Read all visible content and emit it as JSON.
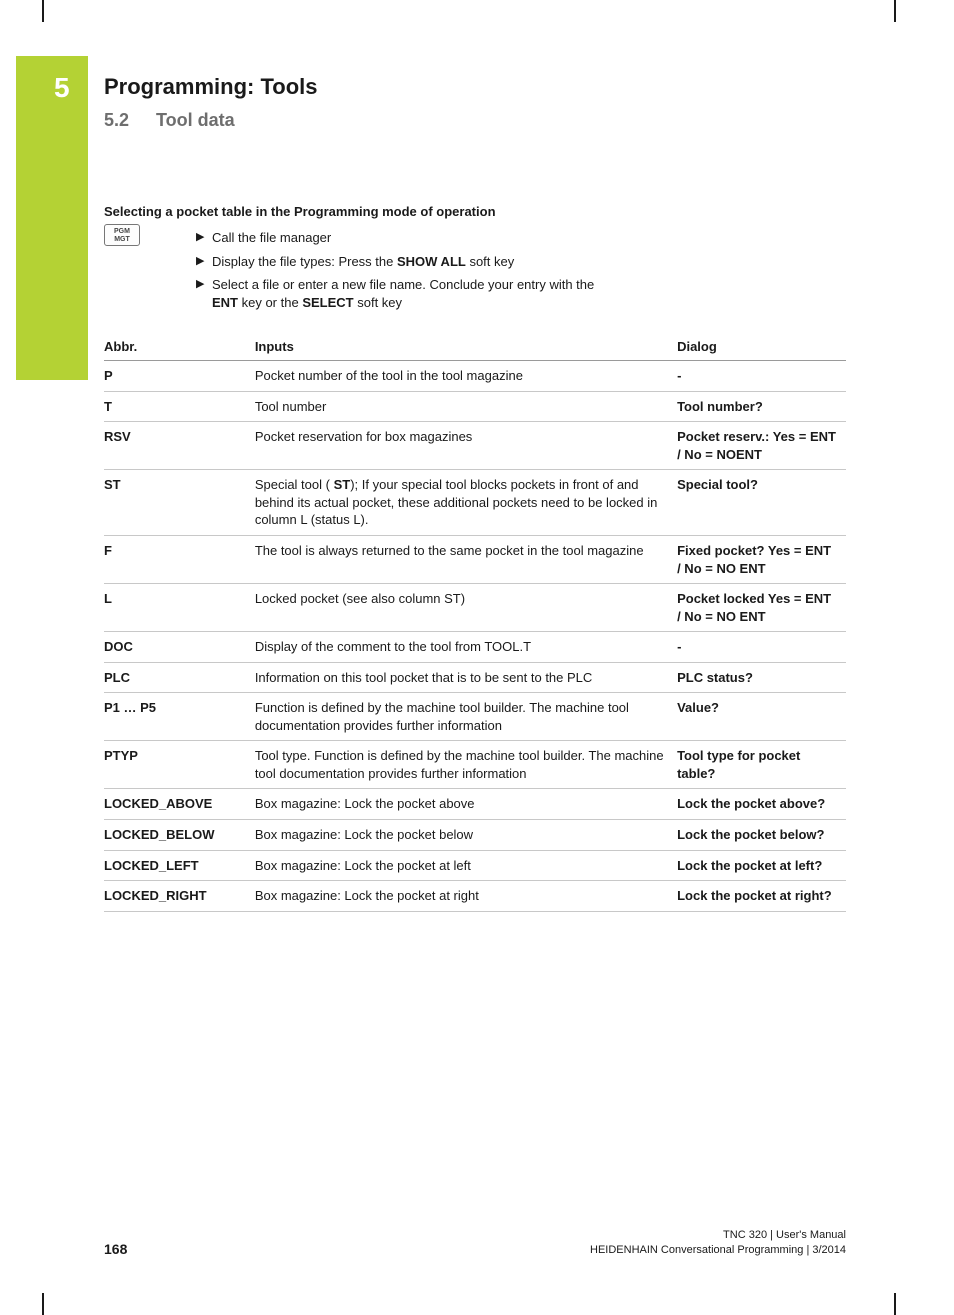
{
  "chapter": {
    "number": "5",
    "title": "Programming: Tools"
  },
  "section": {
    "number": "5.2",
    "title": "Tool data"
  },
  "subheading": "Selecting a pocket table in the Programming mode of operation",
  "keycap": {
    "line1": "PGM",
    "line2": "MGT"
  },
  "bullets": {
    "b0": "Call the file manager",
    "b1_pre": "Display the file types: Press the ",
    "b1_bold": "SHOW ALL",
    "b1_post": " soft key",
    "b2_pre": "Select a file or enter a new file name. Conclude your entry with the ",
    "b2_bold1": "ENT",
    "b2_mid": " key or the ",
    "b2_bold2": "SELECT",
    "b2_post": " soft key"
  },
  "table": {
    "headers": {
      "abbr": "Abbr.",
      "inputs": "Inputs",
      "dialog": "Dialog"
    },
    "rows": [
      {
        "abbr": "P",
        "inputs_plain": "Pocket number of the tool in the tool magazine",
        "dialog": "-"
      },
      {
        "abbr": "T",
        "inputs_plain": "Tool number",
        "dialog": "Tool number?"
      },
      {
        "abbr": "RSV",
        "inputs_plain": "Pocket reservation for box magazines",
        "dialog": "Pocket reserv.: Yes = ENT / No = NOENT"
      },
      {
        "abbr": "ST",
        "inputs_pre": "Special tool ( ",
        "inputs_bold": "ST",
        "inputs_post": "); If your special tool blocks pockets in front of and behind its actual pocket, these additional pockets need to be locked in column L (status L).",
        "dialog": "Special tool?"
      },
      {
        "abbr": "F",
        "inputs_plain": "The tool is always returned to the same pocket in the tool magazine",
        "dialog": "Fixed pocket? Yes = ENT / No = NO ENT"
      },
      {
        "abbr": "L",
        "inputs_plain": "Locked pocket (see also column ST)",
        "dialog": "Pocket locked Yes = ENT / No = NO ENT"
      },
      {
        "abbr": "DOC",
        "inputs_plain": "Display of the comment to the tool from TOOL.T",
        "dialog": "-"
      },
      {
        "abbr": "PLC",
        "inputs_plain": "Information on this tool pocket that is to be sent to the PLC",
        "dialog": "PLC status?"
      },
      {
        "abbr": "P1 … P5",
        "inputs_plain": "Function is defined by the machine tool builder. The machine tool documentation provides further information",
        "dialog": "Value?"
      },
      {
        "abbr": "PTYP",
        "inputs_plain": "Tool type. Function is defined by the machine tool builder. The machine tool documentation provides further information",
        "dialog": "Tool type for pocket table?"
      },
      {
        "abbr": "LOCKED_ABOVE",
        "inputs_plain": "Box magazine: Lock the pocket above",
        "dialog": "Lock the pocket above?"
      },
      {
        "abbr": "LOCKED_BELOW",
        "inputs_plain": "Box magazine: Lock the pocket below",
        "dialog": "Lock the pocket below?"
      },
      {
        "abbr": "LOCKED_LEFT",
        "inputs_plain": "Box magazine: Lock the pocket at left",
        "dialog": "Lock the pocket at left?"
      },
      {
        "abbr": "LOCKED_RIGHT",
        "inputs_plain": "Box magazine: Lock the pocket at right",
        "dialog": "Lock the pocket at right?"
      }
    ]
  },
  "footer": {
    "page": "168",
    "line1": "TNC 320 | User's Manual",
    "line2": "HEIDENHAIN Conversational Programming | 3/2014"
  },
  "colors": {
    "accent_green": "#b4d234",
    "text": "#1a1a1a",
    "section_gray": "#6e6e6e",
    "rule_header": "#9a9a9a",
    "rule_row": "#c8c8c8"
  }
}
